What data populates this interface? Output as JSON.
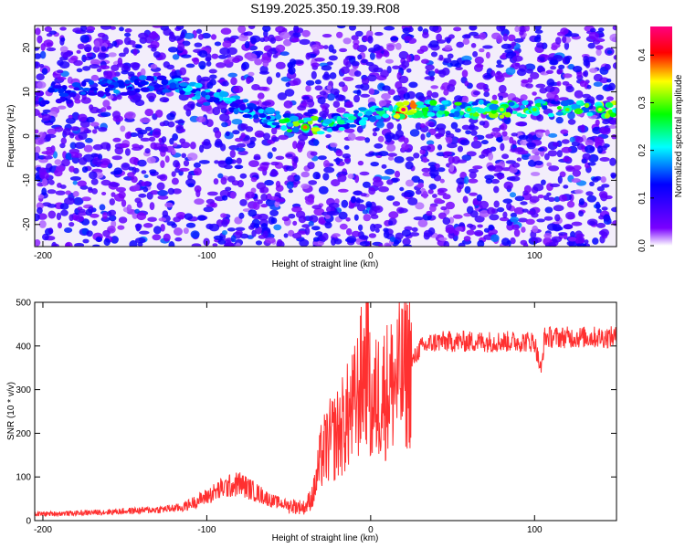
{
  "title": "S199.2025.350.19.39.R08",
  "chart_data": [
    {
      "type": "heatmap",
      "xlabel": "Height of straight line (km)",
      "ylabel": "Frequency (Hz)",
      "xlim": [
        -205,
        150
      ],
      "ylim": [
        -25,
        25
      ],
      "xticks": [
        -200,
        -100,
        0,
        100
      ],
      "yticks": [
        -20,
        -10,
        0,
        10,
        20
      ],
      "colorbar": {
        "label": "Normalized spectral amplitude",
        "range": [
          0,
          0.46
        ],
        "ticks": [
          0,
          0.1,
          0.2,
          0.3,
          0.4
        ],
        "colormap": [
          "#ffffff",
          "#7a00ff",
          "#0000ff",
          "#00ffff",
          "#00ff00",
          "#ffff00",
          "#ff0000",
          "#ff00ff"
        ]
      },
      "ridge": {
        "x": [
          -200,
          -160,
          -120,
          -100,
          -80,
          -60,
          -40,
          -20,
          0,
          20,
          40,
          60,
          80,
          100,
          120,
          140
        ],
        "frequency": [
          9,
          11,
          12,
          9,
          7,
          4,
          2,
          3,
          5,
          6,
          6,
          6,
          6,
          6,
          6,
          6
        ],
        "amplitude": [
          0.15,
          0.18,
          0.2,
          0.22,
          0.2,
          0.22,
          0.38,
          0.25,
          0.22,
          0.45,
          0.28,
          0.3,
          0.33,
          0.3,
          0.3,
          0.35
        ]
      }
    },
    {
      "type": "line",
      "xlabel": "Height of straight line (km)",
      "ylabel": "SNR (10 * v/v)",
      "xlim": [
        -205,
        150
      ],
      "ylim": [
        0,
        500
      ],
      "xticks": [
        -200,
        -100,
        0,
        100
      ],
      "yticks": [
        0,
        100,
        200,
        300,
        400,
        500
      ],
      "color": "#ff3030",
      "series": [
        {
          "x": [
            -205,
            -180,
            -160,
            -130,
            -115,
            -100,
            -90,
            -80,
            -70,
            -60,
            -50,
            -40,
            -35,
            -30,
            -25,
            -20,
            -15,
            -10,
            -5,
            -2,
            0,
            5,
            10,
            15,
            20,
            25,
            30,
            40,
            60,
            80,
            100,
            104,
            106,
            120,
            140,
            150
          ],
          "y": [
            15,
            17,
            20,
            25,
            30,
            55,
            75,
            85,
            65,
            45,
            35,
            30,
            60,
            150,
            180,
            200,
            230,
            260,
            330,
            380,
            250,
            290,
            300,
            320,
            330,
            360,
            395,
            410,
            410,
            410,
            410,
            340,
            420,
            420,
            420,
            420
          ]
        }
      ]
    }
  ]
}
